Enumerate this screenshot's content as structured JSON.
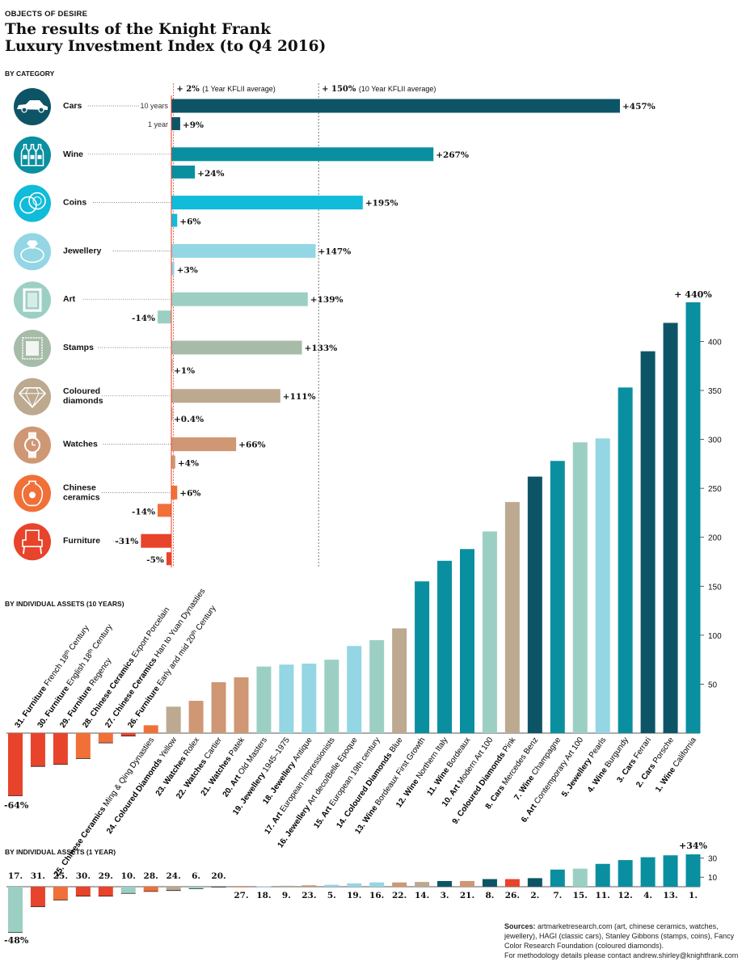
{
  "header": {
    "kicker": "OBJECTS OF DESIRE",
    "title_line1": "The results of the Knight Frank",
    "title_line2": "Luxury Investment Index (to Q4 2016)"
  },
  "sections": {
    "category": "BY CATEGORY",
    "assets_10y": "BY INDIVIDUAL ASSETS (10 YEARS)",
    "assets_1y": "BY INDIVIDUAL ASSETS (1 YEAR)"
  },
  "sources": {
    "label": "Sources:",
    "text": "artmarketresearch.com (art, chinese ceramics, watches, jewellery), HAGI (classic cars), Stanley Gibbons (stamps, coins), Fancy Color Research Foundation (coloured diamonds).",
    "contact": "For methodology details please contact andrew.shirley@knightfrank.com"
  },
  "colors": {
    "cars": "#0d5566",
    "wine": "#0a8fa0",
    "coins": "#10bcd9",
    "jewellery": "#94d6e3",
    "art": "#9ccfc4",
    "stamps": "#a7bba9",
    "diamonds": "#bca98f",
    "watches": "#cf9774",
    "ceramics": "#f07038",
    "furniture": "#e8432b",
    "axis": "#e8432b"
  },
  "chart_data": [
    {
      "type": "bar",
      "orientation": "horizontal",
      "title": "BY CATEGORY",
      "unit": "%",
      "reference_lines": [
        {
          "value": 2,
          "label_bold": "+ 2%",
          "label": "(1 Year KFLII average)"
        },
        {
          "value": 150,
          "label_bold": "+ 150%",
          "label": "(10 Year KFLII average)"
        }
      ],
      "period_labels": [
        "10 years",
        "1 year"
      ],
      "categories": [
        {
          "name": "Cars",
          "icon": "car-icon",
          "color_key": "cars",
          "ten_year": 457,
          "one_year": 9,
          "ten_label": "+457%",
          "one_label": "+9%"
        },
        {
          "name": "Wine",
          "icon": "wine-bottles-icon",
          "color_key": "wine",
          "ten_year": 267,
          "one_year": 24,
          "ten_label": "+267%",
          "one_label": "+24%"
        },
        {
          "name": "Coins",
          "icon": "coins-icon",
          "color_key": "coins",
          "ten_year": 195,
          "one_year": 6,
          "ten_label": "+195%",
          "one_label": "+6%"
        },
        {
          "name": "Jewellery",
          "icon": "ring-icon",
          "color_key": "jewellery",
          "ten_year": 147,
          "one_year": 3,
          "ten_label": "+147%",
          "one_label": "+3%"
        },
        {
          "name": "Art",
          "icon": "picture-frame-icon",
          "color_key": "art",
          "ten_year": 139,
          "one_year": -14,
          "ten_label": "+139%",
          "one_label": "-14%"
        },
        {
          "name": "Stamps",
          "icon": "stamp-icon",
          "color_key": "stamps",
          "ten_year": 133,
          "one_year": 1,
          "ten_label": "+133%",
          "one_label": "+1%"
        },
        {
          "name": "Coloured diamonds",
          "icon": "diamond-icon",
          "color_key": "diamonds",
          "ten_year": 111,
          "one_year": 0.4,
          "ten_label": "+111%",
          "one_label": "+0.4%"
        },
        {
          "name": "Watches",
          "icon": "watch-icon",
          "color_key": "watches",
          "ten_year": 66,
          "one_year": 4,
          "ten_label": "+66%",
          "one_label": "+4%"
        },
        {
          "name": "Chinese ceramics",
          "icon": "vase-icon",
          "color_key": "ceramics",
          "ten_year": 6,
          "one_year": -14,
          "ten_label": "+6%",
          "one_label": "-14%"
        },
        {
          "name": "Furniture",
          "icon": "armchair-icon",
          "color_key": "furniture",
          "ten_year": -31,
          "one_year": -5,
          "ten_label": "-31%",
          "one_label": "-5%"
        }
      ]
    },
    {
      "type": "bar",
      "title": "BY INDIVIDUAL ASSETS (10 YEARS)",
      "unit": "%",
      "ylim": [
        -64,
        440
      ],
      "yticks": [
        50,
        100,
        150,
        200,
        250,
        300,
        350,
        400
      ],
      "min_label": "-64%",
      "max_label": "+ 440%",
      "assets": [
        {
          "rank": "31.",
          "cat": "Furniture",
          "desc": "French 18",
          "sup": "th",
          "desc2": " Century",
          "value": -64,
          "color_key": "furniture"
        },
        {
          "rank": "30.",
          "cat": "Furniture",
          "desc": "English 18",
          "sup": "th",
          "desc2": " Century",
          "value": -34,
          "color_key": "furniture"
        },
        {
          "rank": "29.",
          "cat": "Furniture",
          "desc": "Regency",
          "value": -32,
          "color_key": "furniture"
        },
        {
          "rank": "28.",
          "cat": "Chinese Ceramics",
          "desc": "Export Porcelain",
          "value": -26,
          "color_key": "ceramics"
        },
        {
          "rank": "27.",
          "cat": "Chinese Ceramics",
          "desc": "Han to Yuan Dynasties",
          "value": -10,
          "color_key": "ceramics"
        },
        {
          "rank": "26.",
          "cat": "Furniture",
          "desc": "Early and mid 20",
          "sup": "th",
          "desc2": " Century",
          "value": -3,
          "color_key": "furniture"
        },
        {
          "rank": "25.",
          "cat": "Chinese Ceramics",
          "desc": "Ming & Qing Dynasties",
          "value": 8,
          "color_key": "ceramics",
          "stack": true
        },
        {
          "rank": "24.",
          "cat": "Coloured Diamonds",
          "desc": "Yellow",
          "value": 27,
          "color_key": "diamonds"
        },
        {
          "rank": "23.",
          "cat": "Watches",
          "desc": "Rolex",
          "value": 33,
          "color_key": "watches"
        },
        {
          "rank": "22.",
          "cat": "Watches",
          "desc": "Cartier",
          "value": 52,
          "color_key": "watches"
        },
        {
          "rank": "21.",
          "cat": "Watches",
          "desc": "Patek",
          "value": 57,
          "color_key": "watches"
        },
        {
          "rank": "20.",
          "cat": "Art",
          "desc": "Old Masters",
          "value": 68,
          "color_key": "art"
        },
        {
          "rank": "19.",
          "cat": "Jewellery",
          "desc": "1945–1975",
          "value": 70,
          "color_key": "jewellery"
        },
        {
          "rank": "18.",
          "cat": "Jewellery",
          "desc": "Antique",
          "value": 71,
          "color_key": "jewellery"
        },
        {
          "rank": "17.",
          "cat": "Art",
          "desc": "European Impressionists",
          "value": 75,
          "color_key": "art"
        },
        {
          "rank": "16.",
          "cat": "Jewellery",
          "desc": "Art deco/Belle Epoque",
          "value": 89,
          "color_key": "jewellery"
        },
        {
          "rank": "15.",
          "cat": "Art",
          "desc": "European 19th century",
          "value": 95,
          "color_key": "art"
        },
        {
          "rank": "14.",
          "cat": "Coloured Diamonds",
          "desc": "Blue",
          "value": 107,
          "color_key": "diamonds"
        },
        {
          "rank": "13.",
          "cat": "Wine",
          "desc": "Bordeaux First Growth",
          "value": 155,
          "color_key": "wine"
        },
        {
          "rank": "12.",
          "cat": "Wine",
          "desc": "Northern Italy",
          "value": 176,
          "color_key": "wine"
        },
        {
          "rank": "11.",
          "cat": "Wine",
          "desc": "Bordeaux",
          "value": 188,
          "color_key": "wine"
        },
        {
          "rank": "10.",
          "cat": "Art",
          "desc": "Modern Art 100",
          "value": 206,
          "color_key": "art"
        },
        {
          "rank": "9.",
          "cat": "Coloured Diamonds",
          "desc": "Pink",
          "value": 236,
          "color_key": "diamonds"
        },
        {
          "rank": "8.",
          "cat": "Cars",
          "desc": "Mercedes Benz",
          "value": 262,
          "color_key": "cars"
        },
        {
          "rank": "7.",
          "cat": "Wine",
          "desc": "Champagne",
          "value": 278,
          "color_key": "wine"
        },
        {
          "rank": "6.",
          "cat": "Art",
          "desc": "Contemporary Art 100",
          "value": 297,
          "color_key": "art"
        },
        {
          "rank": "5.",
          "cat": "Jewellery",
          "desc": "Pearls",
          "value": 301,
          "color_key": "jewellery"
        },
        {
          "rank": "4.",
          "cat": "Wine",
          "desc": "Burgundy",
          "value": 353,
          "color_key": "wine"
        },
        {
          "rank": "3.",
          "cat": "Cars",
          "desc": "Ferrari",
          "value": 390,
          "color_key": "cars"
        },
        {
          "rank": "2.",
          "cat": "Cars",
          "desc": "Porsche",
          "value": 419,
          "color_key": "cars"
        },
        {
          "rank": "1.",
          "cat": "Wine",
          "desc": "California",
          "value": 440,
          "color_key": "wine"
        }
      ]
    },
    {
      "type": "bar",
      "title": "BY INDIVIDUAL ASSETS (1 YEAR)",
      "unit": "%",
      "ylim": [
        -48,
        34
      ],
      "yticks": [
        10,
        30
      ],
      "min_label": "-48%",
      "max_label": "+34%",
      "assets": [
        {
          "rank": "17.",
          "value": -48,
          "color_key": "art"
        },
        {
          "rank": "31.",
          "value": -21,
          "color_key": "furniture"
        },
        {
          "rank": "25.",
          "value": -14,
          "color_key": "ceramics"
        },
        {
          "rank": "30.",
          "value": -10,
          "color_key": "furniture"
        },
        {
          "rank": "29.",
          "value": -10,
          "color_key": "furniture"
        },
        {
          "rank": "10.",
          "value": -7,
          "color_key": "art"
        },
        {
          "rank": "28.",
          "value": -5,
          "color_key": "ceramics"
        },
        {
          "rank": "24.",
          "value": -4,
          "color_key": "diamonds"
        },
        {
          "rank": "6.",
          "value": -2,
          "color_key": "art"
        },
        {
          "rank": "20.",
          "value": -0.5,
          "color_key": "art"
        },
        {
          "rank": "27.",
          "value": 0,
          "color_key": "ceramics"
        },
        {
          "rank": "18.",
          "value": 0.5,
          "color_key": "jewellery"
        },
        {
          "rank": "9.",
          "value": 1,
          "color_key": "diamonds"
        },
        {
          "rank": "23.",
          "value": 1.5,
          "color_key": "watches"
        },
        {
          "rank": "5.",
          "value": 2,
          "color_key": "jewellery"
        },
        {
          "rank": "19.",
          "value": 3.5,
          "color_key": "jewellery"
        },
        {
          "rank": "16.",
          "value": 4.5,
          "color_key": "jewellery"
        },
        {
          "rank": "22.",
          "value": 4.5,
          "color_key": "watches"
        },
        {
          "rank": "14.",
          "value": 5,
          "color_key": "diamonds"
        },
        {
          "rank": "3.",
          "value": 6,
          "color_key": "cars"
        },
        {
          "rank": "21.",
          "value": 6,
          "color_key": "watches"
        },
        {
          "rank": "8.",
          "value": 8,
          "color_key": "cars"
        },
        {
          "rank": "26.",
          "value": 8,
          "color_key": "furniture"
        },
        {
          "rank": "2.",
          "value": 9,
          "color_key": "cars"
        },
        {
          "rank": "7.",
          "value": 18,
          "color_key": "wine"
        },
        {
          "rank": "15.",
          "value": 19,
          "color_key": "art"
        },
        {
          "rank": "11.",
          "value": 24,
          "color_key": "wine"
        },
        {
          "rank": "12.",
          "value": 28,
          "color_key": "wine"
        },
        {
          "rank": "4.",
          "value": 31,
          "color_key": "wine"
        },
        {
          "rank": "13.",
          "value": 33,
          "color_key": "wine"
        },
        {
          "rank": "1.",
          "value": 34,
          "color_key": "wine"
        }
      ]
    }
  ]
}
